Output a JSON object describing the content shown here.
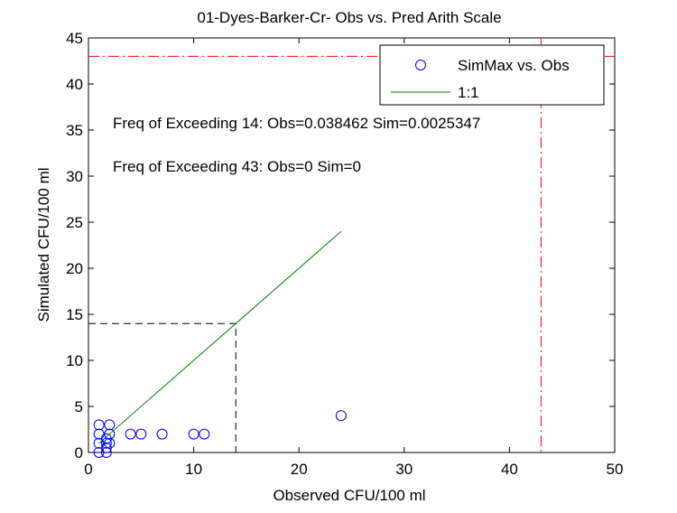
{
  "chart_data": {
    "type": "scatter",
    "title": "01-Dyes-Barker-Cr- Obs vs. Pred Arith Scale",
    "xlabel": "Observed CFU/100 ml",
    "ylabel": "Simulated CFU/100 ml",
    "xlim": [
      0,
      50
    ],
    "ylim": [
      0,
      45
    ],
    "xticks": [
      0,
      10,
      20,
      30,
      40,
      50
    ],
    "yticks": [
      0,
      5,
      10,
      15,
      20,
      25,
      30,
      35,
      40,
      45
    ],
    "grid": false,
    "legend_position": "top-right",
    "series": [
      {
        "name": "SimMax vs. Obs",
        "kind": "scatter",
        "marker": "open-circle",
        "color": "#0000ff",
        "points": [
          [
            1,
            0
          ],
          [
            1,
            1
          ],
          [
            1,
            2
          ],
          [
            1,
            3
          ],
          [
            1.7,
            0
          ],
          [
            1.7,
            0.5
          ],
          [
            1.7,
            1
          ],
          [
            1.7,
            1.5
          ],
          [
            2,
            1
          ],
          [
            2,
            2
          ],
          [
            2,
            3
          ],
          [
            4,
            2
          ],
          [
            5,
            2
          ],
          [
            7,
            2
          ],
          [
            10,
            2
          ],
          [
            11,
            2
          ],
          [
            24,
            4
          ]
        ]
      },
      {
        "name": "1:1",
        "kind": "line",
        "color": "#008000",
        "points": [
          [
            1,
            1
          ],
          [
            24,
            24
          ]
        ]
      }
    ],
    "reference_lines": [
      {
        "style": "dashed",
        "color": "#000000",
        "points": [
          [
            0,
            14
          ],
          [
            14,
            14
          ],
          [
            14,
            0
          ]
        ]
      },
      {
        "style": "dash-dot",
        "color": "#ff0000",
        "orientation": "horizontal",
        "value": 43
      },
      {
        "style": "dash-dot",
        "color": "#ff0000",
        "orientation": "vertical",
        "value": 43
      }
    ],
    "annotations": [
      "Freq of Exceeding 14: Obs=0.038462 Sim=0.0025347",
      "Freq of Exceeding 43: Obs=0 Sim=0"
    ]
  }
}
